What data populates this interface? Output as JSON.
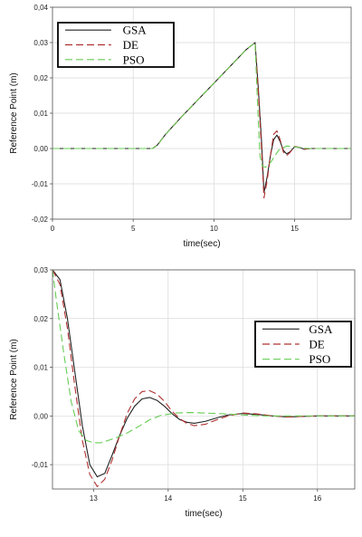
{
  "chart_data": [
    {
      "type": "line",
      "title": "",
      "xlabel": "time(sec)",
      "ylabel": "Reference Point (m)",
      "xlim": [
        0,
        18.5
      ],
      "ylim": [
        -0.02,
        0.04
      ],
      "xticks": [
        0,
        5,
        10,
        15
      ],
      "xtick_labels": [
        "0",
        "5",
        "10",
        "15"
      ],
      "yticks": [
        -0.02,
        -0.01,
        0.0,
        0.01,
        0.02,
        0.03,
        0.04
      ],
      "ytick_labels": [
        "-0,02",
        "-0,01",
        "0,00",
        "0,01",
        "0,02",
        "0,03",
        "0,04"
      ],
      "grid": true,
      "legend_position": "top-left",
      "series": [
        {
          "name": "GSA",
          "color": "#222222",
          "dash": "solid",
          "x": [
            0,
            6.2,
            6.5,
            7.0,
            8.0,
            10.0,
            12.0,
            12.55,
            12.75,
            12.95,
            13.1,
            13.3,
            13.5,
            13.7,
            13.9,
            14.1,
            14.3,
            14.5,
            14.7,
            15.0,
            15.3,
            15.6,
            16.0,
            17.0,
            18.5
          ],
          "y": [
            0,
            0,
            0.001,
            0.004,
            0.009,
            0.0185,
            0.028,
            0.03,
            0.017,
            0.002,
            -0.0125,
            -0.008,
            -0.002,
            0.0025,
            0.0038,
            0.002,
            -0.0005,
            -0.0015,
            -0.001,
            0.0005,
            0.0003,
            -0.0002,
            0,
            0,
            0
          ]
        },
        {
          "name": "DE",
          "color": "#b03030",
          "dash": "8,4",
          "x": [
            0,
            6.2,
            6.5,
            7.0,
            8.0,
            10.0,
            12.0,
            12.55,
            12.75,
            12.95,
            13.1,
            13.3,
            13.5,
            13.7,
            13.9,
            14.1,
            14.3,
            14.5,
            14.7,
            15.0,
            15.3,
            15.6,
            16.0,
            17.0,
            18.5
          ],
          "y": [
            0,
            0,
            0.001,
            0.004,
            0.009,
            0.0185,
            0.028,
            0.03,
            0.016,
            0.0,
            -0.014,
            -0.009,
            -0.002,
            0.004,
            0.005,
            0.0025,
            -0.001,
            -0.002,
            -0.0012,
            0.0006,
            0.0003,
            -0.0002,
            0,
            0,
            0
          ]
        },
        {
          "name": "PSO",
          "color": "#66cc55",
          "dash": "8,4",
          "x": [
            0,
            6.2,
            6.5,
            7.0,
            8.0,
            10.0,
            12.0,
            12.55,
            12.7,
            12.85,
            13.0,
            13.2,
            13.5,
            13.8,
            14.0,
            14.5,
            15.0,
            15.5,
            16.0,
            17.0,
            18.5
          ],
          "y": [
            0,
            0,
            0.001,
            0.004,
            0.009,
            0.0185,
            0.028,
            0.03,
            0.013,
            -0.002,
            -0.005,
            -0.0053,
            -0.004,
            -0.002,
            -0.0005,
            0.0007,
            0.0005,
            0.0001,
            0,
            0,
            0
          ]
        }
      ]
    },
    {
      "type": "line",
      "title": "",
      "xlabel": "time(sec)",
      "ylabel": "Reference Point (m)",
      "xlim": [
        12.45,
        16.5
      ],
      "ylim": [
        -0.015,
        0.03
      ],
      "xticks": [
        13,
        14,
        15,
        16
      ],
      "xtick_labels": [
        "13",
        "14",
        "15",
        "16"
      ],
      "yticks": [
        -0.01,
        0.0,
        0.01,
        0.02,
        0.03
      ],
      "ytick_labels": [
        "-0,01",
        "0,00",
        "0,01",
        "0,02",
        "0,03"
      ],
      "grid": true,
      "legend_position": "center-right",
      "series": [
        {
          "name": "GSA",
          "color": "#222222",
          "dash": "solid",
          "x": [
            12.45,
            12.55,
            12.65,
            12.75,
            12.85,
            12.95,
            13.05,
            13.15,
            13.25,
            13.35,
            13.45,
            13.55,
            13.65,
            13.75,
            13.85,
            13.95,
            14.05,
            14.15,
            14.25,
            14.35,
            14.5,
            14.65,
            14.8,
            15.0,
            15.2,
            15.4,
            15.6,
            15.8,
            16.0,
            16.2,
            16.5
          ],
          "y": [
            0.03,
            0.028,
            0.02,
            0.009,
            -0.002,
            -0.01,
            -0.0125,
            -0.0118,
            -0.008,
            -0.004,
            -0.0005,
            0.002,
            0.0035,
            0.0038,
            0.0032,
            0.002,
            0.0005,
            -0.0007,
            -0.0013,
            -0.0015,
            -0.0011,
            -0.0004,
            0.0002,
            0.0005,
            0.0003,
            0.0,
            -0.0002,
            -0.0001,
            0.0,
            0.0,
            0.0
          ]
        },
        {
          "name": "DE",
          "color": "#b03030",
          "dash": "8,4",
          "x": [
            12.45,
            12.55,
            12.65,
            12.75,
            12.85,
            12.95,
            13.05,
            13.15,
            13.25,
            13.35,
            13.45,
            13.55,
            13.65,
            13.75,
            13.85,
            13.95,
            14.05,
            14.15,
            14.25,
            14.35,
            14.5,
            14.65,
            14.8,
            15.0,
            15.2,
            15.4,
            15.6,
            15.8,
            16.0,
            16.2,
            16.5
          ],
          "y": [
            0.03,
            0.027,
            0.018,
            0.006,
            -0.005,
            -0.012,
            -0.0145,
            -0.013,
            -0.009,
            -0.004,
            0.0005,
            0.0035,
            0.005,
            0.0052,
            0.0045,
            0.003,
            0.001,
            -0.0005,
            -0.0015,
            -0.002,
            -0.0017,
            -0.0008,
            0.0,
            0.0006,
            0.0004,
            0.0,
            -0.0002,
            -0.0001,
            0.0,
            0.0,
            0.0
          ]
        },
        {
          "name": "PSO",
          "color": "#66cc55",
          "dash": "8,4",
          "x": [
            12.45,
            12.5,
            12.6,
            12.7,
            12.8,
            12.9,
            13.0,
            13.1,
            13.2,
            13.3,
            13.45,
            13.6,
            13.75,
            13.9,
            14.1,
            14.3,
            14.5,
            14.8,
            15.0,
            15.3,
            15.6,
            16.0,
            16.5
          ],
          "y": [
            0.03,
            0.024,
            0.013,
            0.003,
            -0.003,
            -0.005,
            -0.0055,
            -0.0055,
            -0.005,
            -0.0045,
            -0.0035,
            -0.0022,
            -0.0008,
            0.0001,
            0.0006,
            0.0007,
            0.0006,
            0.0004,
            0.0002,
            0.0,
            0.0,
            0.0,
            0.0
          ]
        }
      ]
    }
  ]
}
